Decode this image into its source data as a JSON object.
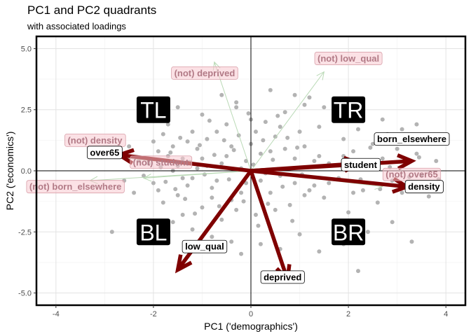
{
  "title": "PC1 and PC2 quadrants",
  "subtitle": "with associated loadings",
  "chart_data": {
    "type": "scatter",
    "title": "PC1 and PC2 quadrants",
    "subtitle": "with associated loadings",
    "xlabel": "PC1 ('demographics')",
    "ylabel": "PC2 ('economics')",
    "xlim": [
      -4.4,
      4.4
    ],
    "ylim": [
      -5.5,
      5.5
    ],
    "x_ticks": [
      -4,
      -2,
      0,
      2,
      4
    ],
    "x_tick_labels": [
      "-4",
      "-2",
      "0",
      "2",
      "4"
    ],
    "y_ticks": [
      -5,
      -2.5,
      0,
      2.5,
      5
    ],
    "y_tick_labels": [
      "-5.0",
      "-2.5",
      "0.0",
      "2.5",
      "5.0"
    ],
    "grid": true,
    "quadrants": [
      {
        "label": "TL",
        "x": -2.0,
        "y": 2.5
      },
      {
        "label": "TR",
        "x": 2.0,
        "y": 2.5
      },
      {
        "label": "BL",
        "x": -2.0,
        "y": -2.5
      },
      {
        "label": "BR",
        "x": 2.0,
        "y": -2.5
      }
    ],
    "loadings": [
      {
        "label": "over65",
        "x": -2.7,
        "y": 0.65,
        "label_x": -3.0,
        "label_y": 0.75
      },
      {
        "label": "student",
        "x": 2.2,
        "y": 0.3,
        "label_x": 2.25,
        "label_y": 0.25
      },
      {
        "label": "born_elsewhere",
        "x": 3.3,
        "y": 0.4,
        "label_x": 3.3,
        "label_y": 1.3
      },
      {
        "label": "density",
        "x": 3.2,
        "y": -0.65,
        "label_x": 3.55,
        "label_y": -0.65
      },
      {
        "label": "low_qual",
        "x": -1.5,
        "y": -4.05,
        "label_x": -0.95,
        "label_y": -3.1
      },
      {
        "label": "deprived",
        "x": 0.75,
        "y": -4.45,
        "label_x": 0.65,
        "label_y": -4.35
      }
    ],
    "negated_loadings": [
      {
        "label": "(not) deprived",
        "x": -0.75,
        "y": 4.45,
        "label_x": -0.95,
        "label_y": 4.0
      },
      {
        "label": "(not) low_qual",
        "x": 1.5,
        "y": 4.05,
        "label_x": 2.0,
        "label_y": 4.6
      },
      {
        "label": "(not) density",
        "x": -3.2,
        "y": 0.65,
        "label_x": -3.2,
        "label_y": 1.25
      },
      {
        "label": "(not) student",
        "x": -2.2,
        "y": -0.3,
        "label_x": -1.85,
        "label_y": 0.35
      },
      {
        "label": "(not) born_elsewhere",
        "x": -3.3,
        "y": -0.4,
        "label_x": -3.6,
        "label_y": -0.65
      },
      {
        "label": "(not) over65",
        "x": 2.7,
        "y": -0.65,
        "label_x": 3.3,
        "label_y": -0.15
      }
    ],
    "points": [
      [
        -2.85,
        -2.5
      ],
      [
        -2.3,
        0.4
      ],
      [
        -2.1,
        0.3
      ],
      [
        -2.2,
        -0.2
      ],
      [
        -1.9,
        0.8
      ],
      [
        -2.0,
        -0.5
      ],
      [
        -1.8,
        1.5
      ],
      [
        -1.7,
        1.9
      ],
      [
        -1.6,
        0.0
      ],
      [
        -1.5,
        -1.0
      ],
      [
        -1.9,
        -0.8
      ],
      [
        -1.4,
        0.5
      ],
      [
        -1.3,
        1.2
      ],
      [
        -1.2,
        -0.3
      ],
      [
        -1.1,
        0.9
      ],
      [
        -1.0,
        -1.5
      ],
      [
        -1.0,
        2.3
      ],
      [
        -0.9,
        0.2
      ],
      [
        -0.8,
        -0.7
      ],
      [
        -0.7,
        1.6
      ],
      [
        -0.6,
        -2.0
      ],
      [
        -0.5,
        0.6
      ],
      [
        -0.4,
        -1.2
      ],
      [
        -0.3,
        2.6
      ],
      [
        -0.2,
        0.1
      ],
      [
        -0.1,
        -0.5
      ],
      [
        0.0,
        1.1
      ],
      [
        0.1,
        -1.8
      ],
      [
        0.2,
        0.7
      ],
      [
        0.3,
        2.0
      ],
      [
        0.4,
        -0.9
      ],
      [
        0.5,
        1.4
      ],
      [
        0.6,
        -0.2
      ],
      [
        0.7,
        2.4
      ],
      [
        0.8,
        -1.4
      ],
      [
        0.9,
        0.5
      ],
      [
        1.0,
        -2.6
      ],
      [
        1.1,
        1.0
      ],
      [
        1.2,
        3.0
      ],
      [
        1.3,
        -0.6
      ],
      [
        1.4,
        1.8
      ],
      [
        1.5,
        -1.1
      ],
      [
        1.6,
        0.3
      ],
      [
        1.7,
        2.3
      ],
      [
        1.8,
        -0.3
      ],
      [
        1.9,
        1.3
      ],
      [
        2.0,
        -1.7
      ],
      [
        2.1,
        0.8
      ],
      [
        2.2,
        1.7
      ],
      [
        2.3,
        -0.8
      ],
      [
        2.4,
        0.2
      ],
      [
        2.5,
        1.1
      ],
      [
        2.6,
        -1.3
      ],
      [
        2.7,
        0.5
      ],
      [
        2.8,
        1.5
      ],
      [
        2.9,
        -0.4
      ],
      [
        3.0,
        0.9
      ],
      [
        3.1,
        -0.9
      ],
      [
        3.2,
        0.3
      ],
      [
        3.3,
        -2.9
      ],
      [
        3.4,
        0.7
      ],
      [
        3.5,
        -0.2
      ],
      [
        3.6,
        1.2
      ],
      [
        3.7,
        -0.6
      ],
      [
        3.8,
        0.4
      ],
      [
        2.2,
        -4.1
      ],
      [
        1.8,
        2.9
      ],
      [
        1.1,
        2.7
      ],
      [
        -0.3,
        2.8
      ],
      [
        -1.4,
        -1.8
      ],
      [
        -2.5,
        1.0
      ],
      [
        -2.4,
        -0.9
      ],
      [
        -1.6,
        -2.1
      ],
      [
        -1.2,
        -2.4
      ],
      [
        -0.8,
        -2.7
      ],
      [
        -0.4,
        -2.9
      ],
      [
        0.2,
        -3.0
      ],
      [
        0.6,
        -3.2
      ],
      [
        1.4,
        -3.3
      ],
      [
        1.9,
        -3.0
      ],
      [
        0.4,
        3.3
      ],
      [
        0.9,
        3.1
      ],
      [
        -0.6,
        3.1
      ],
      [
        -1.5,
        2.6
      ],
      [
        2.7,
        2.1
      ],
      [
        3.1,
        1.7
      ],
      [
        3.4,
        1.9
      ],
      [
        -0.2,
        -3.4
      ],
      [
        2.4,
        -2.5
      ],
      [
        2.9,
        -2.1
      ],
      [
        -1.7,
        0.6
      ],
      [
        -1.5,
        0.2
      ],
      [
        -1.3,
        -0.6
      ],
      [
        -1.1,
        0.1
      ],
      [
        -0.9,
        1.3
      ],
      [
        -0.7,
        -0.4
      ],
      [
        -0.5,
        1.9
      ],
      [
        -0.3,
        -1.6
      ],
      [
        -0.1,
        0.4
      ],
      [
        0.1,
        1.6
      ],
      [
        0.3,
        -0.1
      ],
      [
        0.5,
        -1.6
      ],
      [
        0.7,
        0.9
      ],
      [
        0.9,
        -0.5
      ],
      [
        1.1,
        -1.0
      ],
      [
        1.3,
        0.4
      ],
      [
        1.5,
        2.6
      ],
      [
        1.7,
        -2.1
      ],
      [
        1.9,
        0.6
      ],
      [
        2.1,
        -0.9
      ],
      [
        -2.6,
        -0.4
      ],
      [
        -2.0,
        1.2
      ],
      [
        -1.8,
        -1.3
      ],
      [
        -1.6,
        1.0
      ],
      [
        -1.4,
        -0.3
      ],
      [
        -1.2,
        1.6
      ],
      [
        -1.0,
        0.5
      ],
      [
        -0.8,
        -1.1
      ],
      [
        -0.6,
        0.3
      ],
      [
        -0.4,
        1.0
      ],
      [
        -0.2,
        -0.9
      ],
      [
        0.0,
        2.1
      ],
      [
        0.2,
        -0.4
      ],
      [
        0.4,
        0.8
      ],
      [
        0.6,
        1.8
      ],
      [
        0.8,
        0.1
      ],
      [
        1.0,
        1.6
      ],
      [
        1.2,
        -0.8
      ],
      [
        1.4,
        0.6
      ],
      [
        1.6,
        -0.5
      ],
      [
        -1.85,
        0.15
      ],
      [
        -1.75,
        -0.45
      ],
      [
        -1.65,
        0.75
      ],
      [
        -1.55,
        -0.75
      ],
      [
        -1.45,
        1.35
      ],
      [
        -1.35,
        -1.15
      ],
      [
        -1.25,
        0.35
      ],
      [
        -1.15,
        -1.75
      ],
      [
        -1.05,
        1.05
      ],
      [
        -0.95,
        -0.15
      ],
      [
        -0.85,
        2.05
      ],
      [
        -0.75,
        0.65
      ],
      [
        -0.65,
        -1.45
      ],
      [
        -0.55,
        1.25
      ],
      [
        -0.45,
        -0.35
      ],
      [
        -0.35,
        0.85
      ],
      [
        -0.25,
        1.45
      ],
      [
        -0.15,
        -1.25
      ],
      [
        -0.05,
        2.35
      ],
      [
        0.05,
        0.25
      ],
      [
        0.15,
        -2.25
      ],
      [
        0.25,
        1.25
      ],
      [
        0.35,
        -1.35
      ],
      [
        0.45,
        0.45
      ],
      [
        0.55,
        2.25
      ],
      [
        0.65,
        -0.65
      ],
      [
        0.75,
        1.35
      ],
      [
        0.85,
        -2.05
      ],
      [
        0.95,
        0.95
      ],
      [
        1.05,
        -0.15
      ],
      [
        2.05,
        0.35
      ],
      [
        2.25,
        -0.35
      ],
      [
        2.45,
        0.95
      ],
      [
        2.65,
        -0.75
      ],
      [
        2.85,
        0.15
      ],
      [
        3.05,
        1.35
      ],
      [
        3.25,
        -0.25
      ],
      [
        3.45,
        0.55
      ],
      [
        3.65,
        -1.05
      ],
      [
        3.85,
        -0.35
      ]
    ]
  }
}
